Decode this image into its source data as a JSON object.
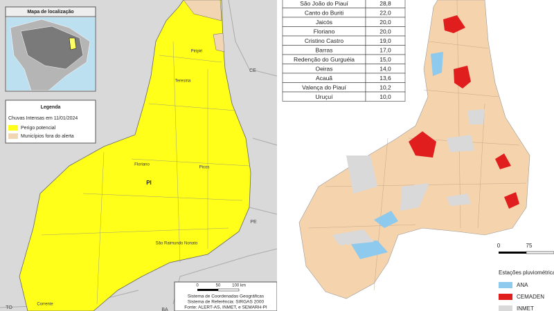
{
  "left_map": {
    "inset_title": "Mapa de localização",
    "legend": {
      "title": "Legenda",
      "subtitle": "Chuvas Intensas em 11/01/2024",
      "items": [
        "Perigo potencial",
        "Municípios fora do alerta"
      ]
    },
    "places": [
      "Piripiri",
      "Teresina",
      "Floriano",
      "Picos",
      "PI",
      "São Raimundo Nonato",
      "Corrente"
    ],
    "states": [
      "CE",
      "PE",
      "TO",
      "BA"
    ],
    "scale": [
      "0",
      "50",
      "100 km"
    ],
    "footer": [
      "Sistema de Coordenadas Geográficas",
      "Sistema de Referência: SIRGAS 2000",
      "Fonte: ALERT-AS, INMET, e SEMARH-PI"
    ]
  },
  "right_map": {
    "table": {
      "rows": [
        [
          "São João do Piauí",
          "28,8"
        ],
        [
          "Canto do Buriti",
          "22,0"
        ],
        [
          "Jaicós",
          "20,0"
        ],
        [
          "Floriano",
          "20,0"
        ],
        [
          "Cristino Castro",
          "19,0"
        ],
        [
          "Barras",
          "17,0"
        ],
        [
          "Redenção do Gurguéia",
          "15,0"
        ],
        [
          "Oeiras",
          "14,0"
        ],
        [
          "Acauã",
          "13,6"
        ],
        [
          "Valença do Piauí",
          "10,2"
        ],
        [
          "Uruçuí",
          "10,0"
        ]
      ]
    },
    "scale": [
      "0",
      "75"
    ],
    "legend": {
      "title": "Estações pluviométricas",
      "items": [
        "ANA",
        "CEMADEN",
        "INMET"
      ]
    }
  }
}
